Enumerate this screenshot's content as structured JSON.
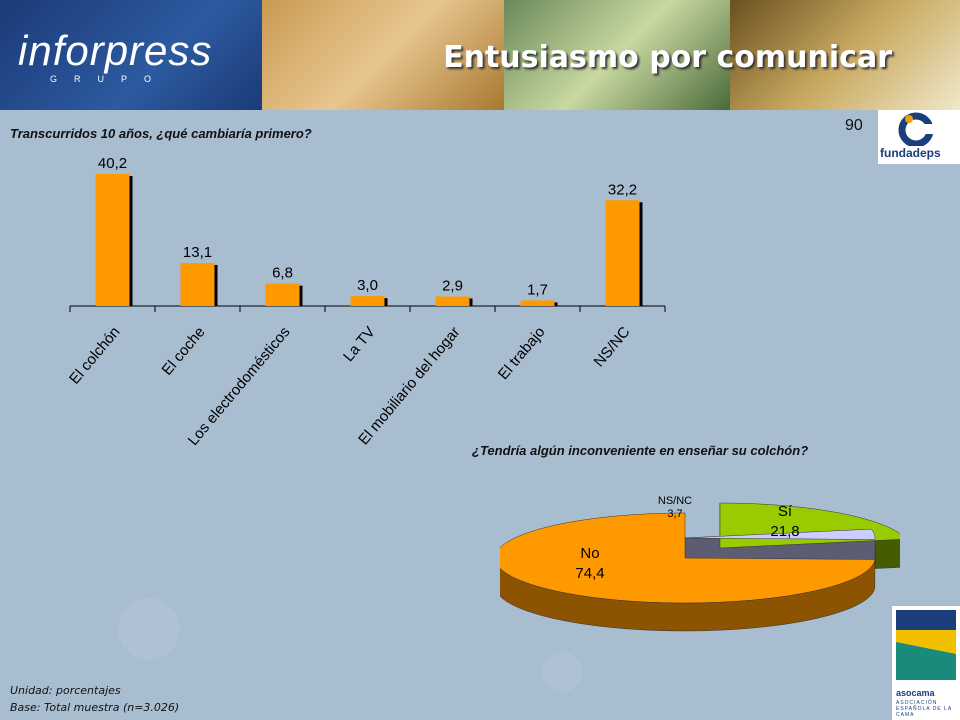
{
  "header": {
    "logo_text": "inforpress",
    "logo_sub": "GRUPO",
    "title": "Entusiasmo por comunicar"
  },
  "page_number": "90",
  "fundadeps_logo": "fundadeps",
  "asocama_logo": "asocama",
  "asocama_sub": "ASOCIACIÓN ESPAÑOLA DE LA CAMA",
  "q1": "Transcurridos 10 años, ¿qué cambiaría primero?",
  "q2": "¿Tendría algún inconveniente en enseñar su colchón?",
  "footer": {
    "unit": "Unidad: porcentajes",
    "base": "Base: Total muestra (n=3.026)"
  },
  "colors": {
    "bar": "#ff9900",
    "pie_no": "#ff9900",
    "pie_si": "#99cc00",
    "pie_nsnc": "#ccccff",
    "background": "#a9bdd0"
  },
  "chart_data": [
    {
      "type": "bar",
      "title": "Transcurridos 10 años, ¿qué cambiaría primero?",
      "categories": [
        "El colchón",
        "El coche",
        "Los electrodomésticos",
        "La TV",
        "El mobiliario del hogar",
        "El trabajo",
        "NS/NC"
      ],
      "values": [
        40.2,
        13.1,
        6.8,
        3.0,
        2.9,
        1.7,
        32.2
      ],
      "value_labels": [
        "40,2",
        "13,1",
        "6,8",
        "3,0",
        "2,9",
        "1,7",
        "32,2"
      ],
      "ylim": [
        0,
        40.2
      ],
      "grid": false,
      "legend": "none"
    },
    {
      "type": "pie",
      "title": "¿Tendría algún inconveniente en enseñar su colchón?",
      "labels": [
        "Sí",
        "NS/NC",
        "No"
      ],
      "values": [
        21.8,
        3.7,
        74.4
      ],
      "value_labels": [
        "21,8",
        "3,7",
        "74,4"
      ],
      "exploded": true,
      "three_d": true
    }
  ]
}
